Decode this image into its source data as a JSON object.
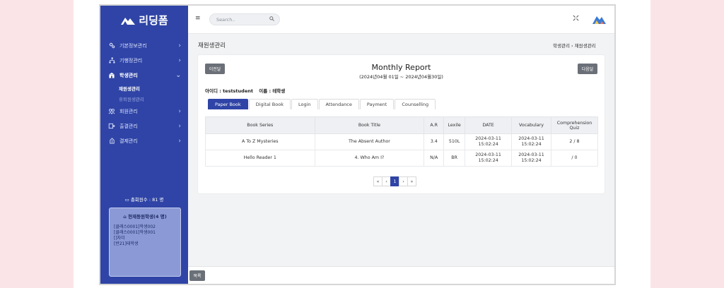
{
  "app": {
    "logo_text": "리딩폼"
  },
  "sidebar": {
    "items": [
      {
        "label": "기본정보관리",
        "icon": "gear-icon"
      },
      {
        "label": "기행정관리",
        "icon": "hierarchy-icon"
      },
      {
        "label": "학생관리",
        "icon": "school-icon",
        "active": true
      },
      {
        "label": "회원관리",
        "icon": "users-icon"
      },
      {
        "label": "출결관리",
        "icon": "attendance-icon"
      },
      {
        "label": "결제관리",
        "icon": "payment-icon"
      }
    ],
    "submenu": [
      "재원생관리",
      "휴퇴원생관리"
    ],
    "total_label": "총회원수 : 81 명",
    "online": {
      "title": "현재등원학생(4 명)",
      "rows": [
        "[클래스0001]학생002",
        "[클래스0001]학생001",
        "[]차더",
        "[반21]테학생"
      ]
    }
  },
  "header": {
    "search_placeholder": "Search.."
  },
  "page": {
    "title": "재원생관리",
    "breadcrumb_parent": "학생관리",
    "breadcrumb_current": "재원생관리"
  },
  "report": {
    "prev_label": "이전달",
    "next_label": "다음달",
    "title": "Monthly Report",
    "range": "(2024년04월 01일 ~ 2024년04월30일)",
    "user_id": "아이디 : teststudent",
    "user_name": "이름 : 테학생"
  },
  "tabs": [
    "Paper Book",
    "Digital Book",
    "Login",
    "Attendance",
    "Payment",
    "Counselling"
  ],
  "table": {
    "headers": [
      "Book Series",
      "Book Title",
      "A.R",
      "Lexile",
      "DATE",
      "Vocabulary",
      "Comprehension Quiz"
    ],
    "rows": [
      [
        "A To Z Mysteries",
        "The Absent Author",
        "3.4",
        "510L",
        "2024-03-11 15:02:24",
        "2024-03-11 15:02:24",
        "2 / 8"
      ],
      [
        "Hello Reader 1",
        "4. Who Am I?",
        "N/A",
        "BR",
        "2024-03-11 15:02:24",
        "2024-03-11 15:02:24",
        "/ 0"
      ]
    ]
  },
  "pagination": {
    "first": "«",
    "prev": "‹",
    "current": "1",
    "next": "›",
    "last": "»"
  },
  "footer": {
    "list_label": "목록"
  },
  "colors": {
    "sidebar": "#2f44a6",
    "accent": "#2f44a6",
    "button_gray": "#6b7078"
  }
}
